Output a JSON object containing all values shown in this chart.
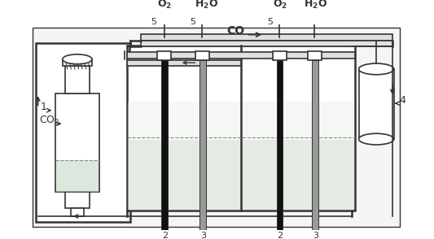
{
  "bg": "#f5f5f5",
  "lc": "#333333",
  "lc2": "#555555",
  "white": "#ffffff",
  "liquid": "#c8d8c8",
  "liquid2": "#d0d8d0",
  "electrode_dark": "#111111",
  "electrode_gray": "#999999",
  "pipe_fill": "#e0e0e0",
  "labels": {
    "co": "CO",
    "co2": "CO$_2$",
    "o2_1": "O$_2$",
    "h2o_1": "H$_2$O",
    "o2_2": "O$_2$",
    "h2o_2": "H$_2$O",
    "1": "1",
    "2": "2",
    "3": "3",
    "4": "4",
    "5": "5"
  }
}
